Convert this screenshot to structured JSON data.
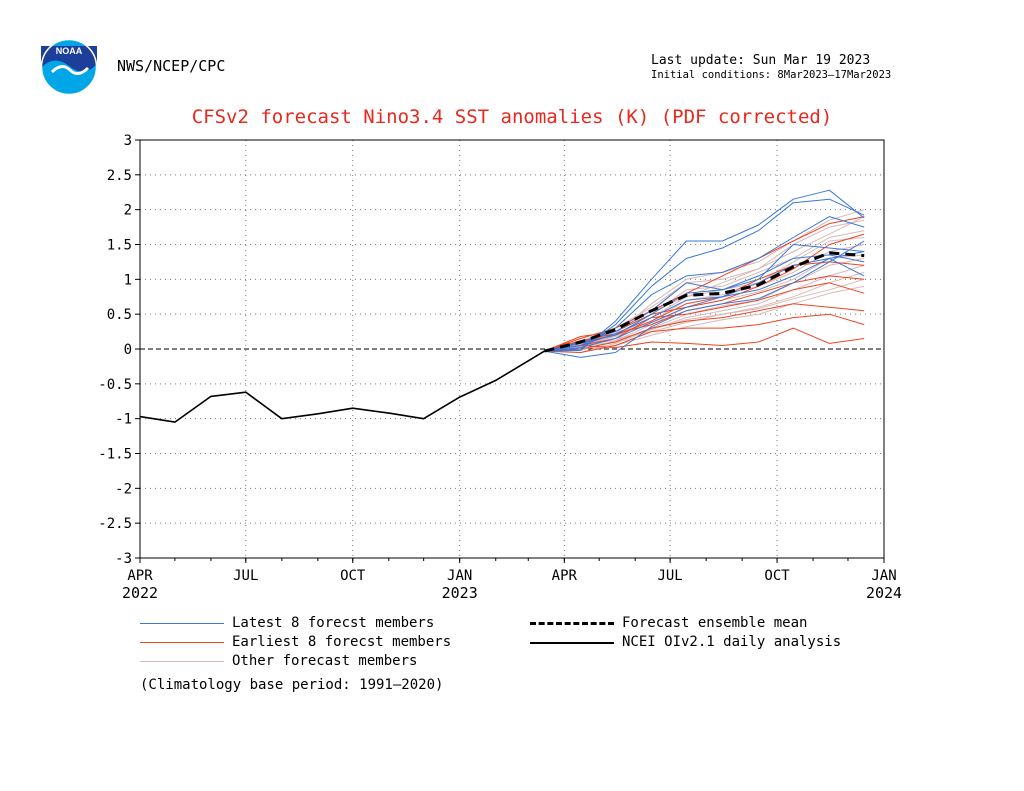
{
  "header": {
    "agency": "NWS/NCEP/CPC",
    "last_update": "Last update: Sun Mar 19 2023",
    "initial_conditions": "Initial conditions: 8Mar2023–17Mar2023",
    "logo_text": "NOAA"
  },
  "footer": {
    "climatology_note": "(Climatology base period: 1991—2020)"
  },
  "colors": {
    "title": "#e8281e",
    "latest": "#3a78d8",
    "earliest": "#ee4422",
    "other": "#d8b8b8",
    "analysis": "#000000",
    "logo_blue": "#00a6e8",
    "logo_navy": "#1c3f99"
  },
  "chart_data": {
    "type": "line",
    "title": "CFSv2 forecast Nino3.4 SST anomalies (K) (PDF corrected)",
    "xlabel": "",
    "ylabel": "",
    "x_range": [
      "2022-04-01",
      "2024-01-01"
    ],
    "ylim": [
      -3,
      3
    ],
    "yticks": [
      "3",
      "2.5",
      "2",
      "1.5",
      "1",
      "0.5",
      "0",
      "-0.5",
      "-1",
      "-1.5",
      "-2",
      "-2.5",
      "-3"
    ],
    "xticks": [
      {
        "label": "APR",
        "year": "2022",
        "date": "2022-04-01"
      },
      {
        "label": "JUL",
        "year": "",
        "date": "2022-07-01"
      },
      {
        "label": "OCT",
        "year": "",
        "date": "2022-10-01"
      },
      {
        "label": "JAN",
        "year": "2023",
        "date": "2023-01-01"
      },
      {
        "label": "APR",
        "year": "",
        "date": "2023-04-01"
      },
      {
        "label": "JUL",
        "year": "",
        "date": "2023-07-01"
      },
      {
        "label": "OCT",
        "year": "",
        "date": "2023-10-01"
      },
      {
        "label": "JAN",
        "year": "2024",
        "date": "2024-01-01"
      }
    ],
    "grid": "dotted",
    "zero_line": true,
    "legend": [
      {
        "label": "Latest 8 forecst members",
        "style": "thin-blue"
      },
      {
        "label": "Earliest 8 forecst members",
        "style": "thin-red"
      },
      {
        "label": "Other forecast members",
        "style": "thin-pink"
      },
      {
        "label": "Forecast ensemble mean",
        "style": "black-dashed"
      },
      {
        "label": "NCEI OIv2.1 daily analysis",
        "style": "black-solid"
      }
    ],
    "forecast_dates": [
      "2023-03-15",
      "2023-04-15",
      "2023-05-15",
      "2023-06-15",
      "2023-07-15",
      "2023-08-15",
      "2023-09-15",
      "2023-10-15",
      "2023-11-15",
      "2023-12-15"
    ],
    "series": [
      {
        "name": "NCEI OIv2.1 daily analysis",
        "kind": "analysis",
        "x": [
          "2022-04-01",
          "2022-05-01",
          "2022-06-01",
          "2022-07-01",
          "2022-08-01",
          "2022-09-01",
          "2022-10-01",
          "2022-11-01",
          "2022-12-01",
          "2023-01-01",
          "2023-02-01",
          "2023-03-15"
        ],
        "values": [
          -0.97,
          -1.05,
          -0.68,
          -0.62,
          -1.0,
          -0.93,
          -0.85,
          -0.92,
          -1.0,
          -0.69,
          -0.45,
          -0.03
        ]
      },
      {
        "name": "Forecast ensemble mean",
        "kind": "mean",
        "values": [
          -0.03,
          0.1,
          0.28,
          0.55,
          0.77,
          0.8,
          0.92,
          1.18,
          1.38,
          1.34
        ]
      },
      {
        "kind": "latest",
        "values": [
          -0.03,
          -0.02,
          0.4,
          1.0,
          1.55,
          1.55,
          1.78,
          2.15,
          2.28,
          1.88
        ]
      },
      {
        "kind": "latest",
        "values": [
          -0.03,
          0.0,
          0.35,
          0.9,
          1.3,
          1.45,
          1.7,
          2.1,
          2.15,
          1.92
        ]
      },
      {
        "kind": "latest",
        "values": [
          -0.03,
          0.05,
          0.3,
          0.78,
          1.05,
          1.1,
          1.3,
          1.6,
          1.9,
          1.75
        ]
      },
      {
        "kind": "latest",
        "values": [
          -0.03,
          0.1,
          0.25,
          0.55,
          0.95,
          0.85,
          1.0,
          1.5,
          1.45,
          1.4
        ]
      },
      {
        "kind": "latest",
        "values": [
          -0.03,
          0.08,
          0.2,
          0.5,
          0.8,
          0.85,
          1.05,
          1.3,
          1.35,
          1.25
        ]
      },
      {
        "kind": "latest",
        "values": [
          -0.03,
          0.05,
          0.22,
          0.45,
          0.7,
          0.75,
          0.95,
          1.2,
          1.3,
          1.05
        ]
      },
      {
        "kind": "latest",
        "values": [
          -0.03,
          0.02,
          0.15,
          0.38,
          0.6,
          0.75,
          0.85,
          1.05,
          1.3,
          1.4
        ]
      },
      {
        "kind": "latest",
        "values": [
          -0.03,
          -0.12,
          -0.05,
          0.32,
          0.55,
          0.65,
          0.72,
          0.95,
          1.25,
          1.55
        ]
      },
      {
        "kind": "earliest",
        "values": [
          -0.03,
          0.18,
          0.25,
          0.5,
          0.6,
          0.7,
          0.9,
          1.15,
          1.5,
          1.65
        ]
      },
      {
        "kind": "earliest",
        "values": [
          -0.03,
          0.15,
          0.3,
          0.55,
          0.8,
          1.05,
          1.3,
          1.55,
          1.8,
          1.9
        ]
      },
      {
        "kind": "earliest",
        "values": [
          -0.03,
          0.1,
          0.2,
          0.4,
          0.65,
          0.75,
          1.0,
          1.2,
          1.25,
          1.2
        ]
      },
      {
        "kind": "earliest",
        "values": [
          -0.03,
          0.05,
          0.15,
          0.45,
          0.5,
          0.6,
          0.7,
          0.85,
          0.95,
          0.8
        ]
      },
      {
        "kind": "earliest",
        "values": [
          -0.03,
          0.0,
          0.1,
          0.3,
          0.4,
          0.45,
          0.55,
          0.65,
          0.6,
          0.55
        ]
      },
      {
        "kind": "earliest",
        "values": [
          -0.03,
          -0.05,
          0.05,
          0.25,
          0.3,
          0.3,
          0.35,
          0.45,
          0.5,
          0.35
        ]
      },
      {
        "kind": "earliest",
        "values": [
          -0.03,
          0.05,
          0.02,
          0.1,
          0.08,
          0.05,
          0.1,
          0.3,
          0.08,
          0.15
        ]
      },
      {
        "kind": "earliest",
        "values": [
          -0.03,
          0.12,
          0.22,
          0.35,
          0.55,
          0.65,
          0.8,
          0.95,
          1.05,
          1.0
        ]
      },
      {
        "kind": "other",
        "values": [
          -0.03,
          0.0,
          0.3,
          0.6,
          0.95,
          1.0,
          1.15,
          1.5,
          1.75,
          1.85
        ]
      },
      {
        "kind": "other",
        "values": [
          -0.03,
          0.08,
          0.25,
          0.5,
          0.85,
          0.9,
          1.1,
          1.3,
          1.6,
          1.7
        ]
      },
      {
        "kind": "other",
        "values": [
          -0.03,
          0.02,
          0.2,
          0.45,
          0.75,
          0.85,
          0.95,
          1.25,
          1.55,
          1.6
        ]
      },
      {
        "kind": "other",
        "values": [
          -0.03,
          0.05,
          0.18,
          0.4,
          0.7,
          0.78,
          0.9,
          1.1,
          1.4,
          1.5
        ]
      },
      {
        "kind": "other",
        "values": [
          -0.03,
          -0.02,
          0.12,
          0.35,
          0.6,
          0.7,
          0.82,
          1.0,
          1.3,
          1.35
        ]
      },
      {
        "kind": "other",
        "values": [
          -0.03,
          0.04,
          0.1,
          0.3,
          0.5,
          0.62,
          0.7,
          0.95,
          1.2,
          1.3
        ]
      },
      {
        "kind": "other",
        "values": [
          -0.03,
          -0.05,
          0.08,
          0.28,
          0.45,
          0.55,
          0.65,
          0.85,
          1.05,
          1.2
        ]
      },
      {
        "kind": "other",
        "values": [
          -0.03,
          0.06,
          0.15,
          0.25,
          0.38,
          0.5,
          0.6,
          0.75,
          0.95,
          1.1
        ]
      },
      {
        "kind": "other",
        "values": [
          -0.03,
          0.0,
          0.05,
          0.2,
          0.32,
          0.42,
          0.5,
          0.65,
          0.8,
          0.9
        ]
      },
      {
        "kind": "other",
        "values": [
          -0.03,
          0.1,
          0.3,
          0.55,
          0.75,
          0.95,
          1.15,
          1.4,
          1.65,
          1.9
        ]
      },
      {
        "kind": "other",
        "values": [
          -0.03,
          0.03,
          0.22,
          0.65,
          1.0,
          1.1,
          1.25,
          1.55,
          1.85,
          2.0
        ]
      },
      {
        "kind": "other",
        "values": [
          -0.03,
          0.07,
          0.12,
          0.28,
          0.42,
          0.5,
          0.58,
          0.72,
          0.85,
          1.0
        ]
      }
    ]
  }
}
